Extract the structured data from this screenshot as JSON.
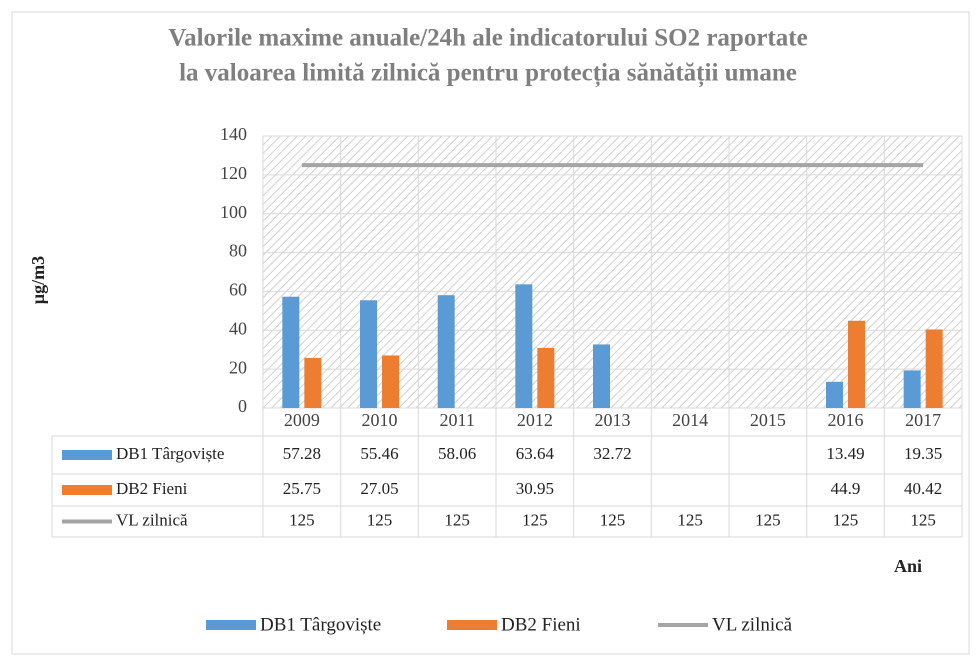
{
  "chart_data": {
    "type": "bar",
    "title": [
      "Valorile maxime anuale/24h ale indicatorului SO2 raportate",
      "la valoarea limită zilnică pentru protecția sănătății umane"
    ],
    "y_label": "µg/m3",
    "x_label": "Ani",
    "categories": [
      "2009",
      "2010",
      "2011",
      "2012",
      "2013",
      "2014",
      "2015",
      "2016",
      "2017"
    ],
    "series": [
      {
        "name": "DB1 Târgoviște",
        "color": "#5b9bd5",
        "kind": "bar",
        "values": [
          57.28,
          55.46,
          58.06,
          63.64,
          32.72,
          null,
          null,
          13.49,
          19.35
        ]
      },
      {
        "name": "DB2 Fieni",
        "color": "#ed7d31",
        "kind": "bar",
        "values": [
          25.75,
          27.05,
          null,
          30.95,
          null,
          null,
          null,
          44.9,
          40.42
        ]
      },
      {
        "name": "VL zilnică",
        "color": "#a5a5a5",
        "kind": "line",
        "values": [
          125,
          125,
          125,
          125,
          125,
          125,
          125,
          125,
          125
        ]
      }
    ],
    "ylim": [
      0,
      140
    ],
    "yticks": [
      0,
      20,
      40,
      60,
      80,
      100,
      120,
      140
    ],
    "grid": true,
    "data_table": true,
    "legend": "bottom"
  }
}
